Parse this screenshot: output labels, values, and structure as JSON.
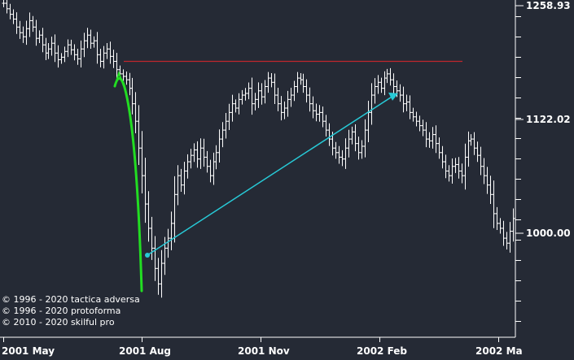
{
  "chart_data": {
    "type": "bar",
    "subtype": "ohlc-price-bars",
    "x_tick_labels": [
      "2001 May",
      "2001 Aug",
      "2001 Nov",
      "2002 Feb",
      "2002 Ma"
    ],
    "y_tick_labels": [
      "1258.93",
      "1122.02",
      "1000.00"
    ],
    "y_axis": {
      "scale": "log",
      "range": [
        891,
        1330
      ],
      "side": "right"
    },
    "grid": false,
    "colors": {
      "background": "#252a35",
      "bars": "#ffffff",
      "resistance_line": "#c0272d",
      "curve": "#22dd22",
      "arrow": "#27c9d6"
    },
    "annotations": [
      {
        "kind": "horizontal-line",
        "value": 1190,
        "color": "#c0272d"
      },
      {
        "kind": "arrow",
        "from_value": 978,
        "to_value": 1152,
        "color": "#27c9d6"
      },
      {
        "kind": "curve",
        "from_value": 1170,
        "to_value": 935,
        "color": "#22dd22"
      }
    ],
    "closes": [
      1262,
      1255,
      1248,
      1242,
      1232,
      1225,
      1220,
      1230,
      1240,
      1232,
      1218,
      1222,
      1210,
      1200,
      1205,
      1212,
      1200,
      1192,
      1195,
      1202,
      1210,
      1204,
      1198,
      1193,
      1205,
      1215,
      1222,
      1212,
      1215,
      1198,
      1190,
      1200,
      1205,
      1196,
      1190,
      1180,
      1175,
      1172,
      1168,
      1158,
      1140,
      1120,
      1090,
      1060,
      1030,
      1005,
      985,
      965,
      950,
      970,
      985,
      995,
      1010,
      1040,
      1060,
      1050,
      1065,
      1075,
      1082,
      1088,
      1078,
      1090,
      1080,
      1070,
      1060,
      1075,
      1085,
      1100,
      1110,
      1120,
      1130,
      1140,
      1135,
      1145,
      1150,
      1152,
      1158,
      1140,
      1145,
      1155,
      1148,
      1160,
      1170,
      1165,
      1150,
      1140,
      1130,
      1135,
      1145,
      1150,
      1160,
      1170,
      1168,
      1160,
      1150,
      1140,
      1132,
      1128,
      1130,
      1120,
      1110,
      1100,
      1090,
      1085,
      1080,
      1078,
      1090,
      1100,
      1108,
      1095,
      1085,
      1092,
      1110,
      1130,
      1150,
      1160,
      1165,
      1158,
      1170,
      1175,
      1168,
      1160,
      1155,
      1150,
      1140,
      1142,
      1130,
      1125,
      1120,
      1115,
      1110,
      1100,
      1098,
      1105,
      1095,
      1085,
      1075,
      1065,
      1060,
      1070,
      1072,
      1065,
      1060,
      1080,
      1098,
      1100,
      1090,
      1082,
      1070,
      1060,
      1050,
      1040,
      1020,
      1010,
      1005,
      995,
      990,
      1002,
      1015
    ]
  },
  "copyright": [
    "© 1996 - 2020 tactica adversa",
    "© 1996 - 2020 protoforma",
    "© 2010 - 2020 skilful pro"
  ]
}
